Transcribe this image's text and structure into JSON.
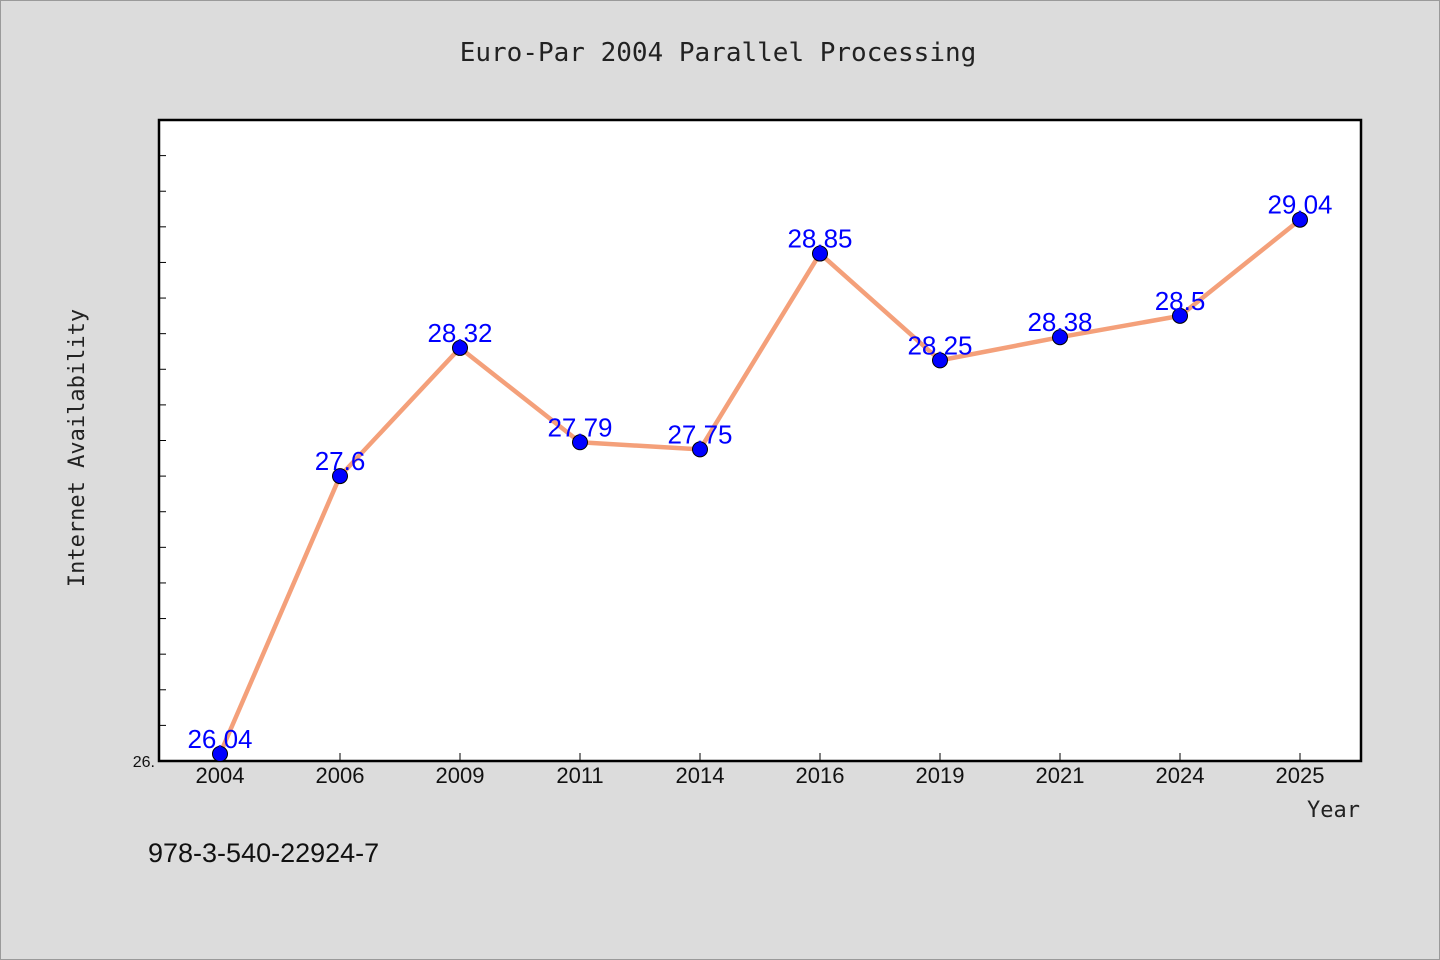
{
  "chart_data": {
    "type": "line",
    "title": "Euro-Par 2004 Parallel Processing",
    "xlabel": "Year",
    "ylabel": "Internet Availability",
    "categories": [
      "2004",
      "2006",
      "2009",
      "2011",
      "2014",
      "2016",
      "2019",
      "2021",
      "2024",
      "2025"
    ],
    "series": [
      {
        "values": [
          26.04,
          27.6,
          28.32,
          27.79,
          27.75,
          28.85,
          28.25,
          28.38,
          28.5,
          29.04
        ],
        "labels": [
          "26.04",
          "27.6",
          "28.32",
          "27.79",
          "27.75",
          "28.85",
          "28.25",
          "28.38",
          "28.5",
          "29.04"
        ],
        "line_color": "#f4a07a",
        "marker_color": "#0000ff",
        "label_color": "#0000ff"
      }
    ],
    "ylim": [
      26.0,
      29.6
    ],
    "ytick_visible_label": "26.",
    "grid": false
  },
  "footer": {
    "isbn": "978-3-540-22924-7"
  },
  "colors": {
    "background": "#dcdcdc",
    "plot_background": "#ffffff",
    "axis": "#000000"
  }
}
